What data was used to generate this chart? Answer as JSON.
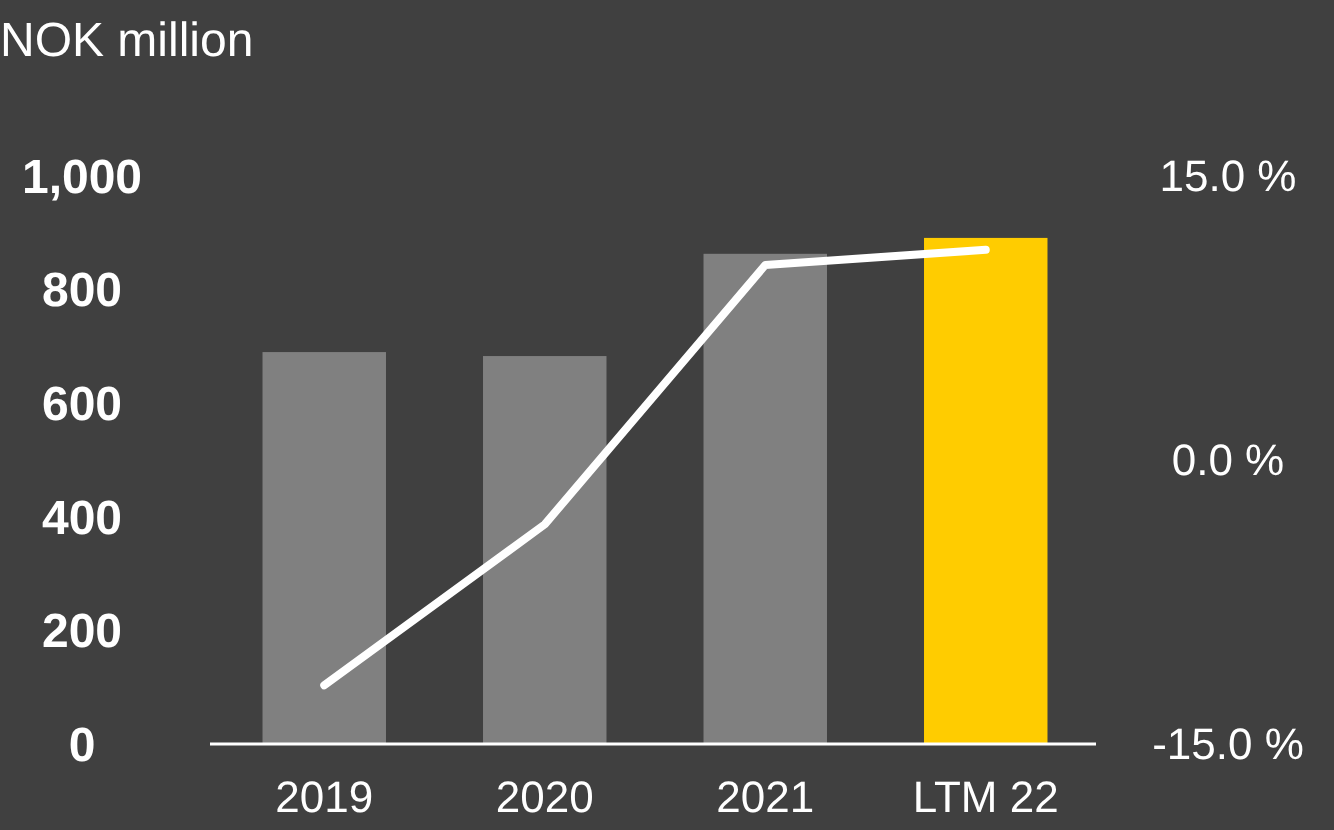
{
  "chart_data": {
    "type": "bar",
    "title": "NOK million",
    "categories": [
      "2019",
      "2020",
      "2021",
      "LTM 22"
    ],
    "series": [
      {
        "colors": [
          "#808080",
          "#808080",
          "#808080",
          "#ffcc00"
        ],
        "values": [
          690,
          683,
          863,
          891
        ]
      },
      {
        "type": "line",
        "axis": "y2",
        "color": "#ffffff",
        "values": [
          -11.9,
          -3.4,
          10.3,
          11.1
        ]
      }
    ],
    "ylim": [
      0,
      1000
    ],
    "yticks": [
      0,
      200,
      400,
      600,
      800,
      {
        "value": 1000,
        "label": "1,000"
      }
    ],
    "y2lim": [
      -15,
      15
    ],
    "y2ticks": [
      {
        "value": -15,
        "label": "-15.0 %"
      },
      {
        "value": 0,
        "label": "0.0 %"
      },
      {
        "value": 15,
        "label": "15.0 %"
      }
    ],
    "grid": false,
    "marker": "none",
    "line_style": "solid"
  }
}
